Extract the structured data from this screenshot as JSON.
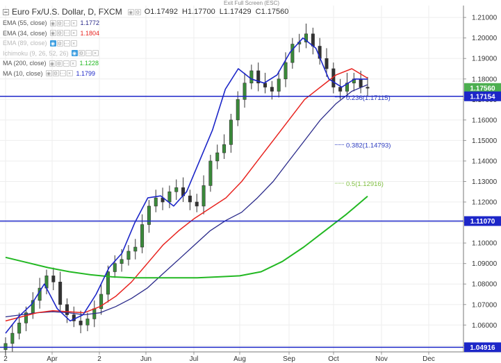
{
  "header": {
    "title": "Euro Fx/U.S. Dollar, D, FXCM",
    "exit_label": "Exit Full Screen (ESC)",
    "ohlc": {
      "open": "O1.17492",
      "high": "H1.17700",
      "low": "L1.17429",
      "close": "C1.17560"
    }
  },
  "indicators": [
    {
      "name": "EMA (55, close)",
      "value": "1.1772",
      "color": "#2a2a8a",
      "faded": false
    },
    {
      "name": "EMA (34, close)",
      "value": "1.1804",
      "color": "#e8231f",
      "faded": false
    },
    {
      "name": "EMA (89, close)",
      "value": "",
      "color": "#bbbbbb",
      "faded": true
    },
    {
      "name": "Ichimoku (9, 26, 52, 26)",
      "value": "",
      "color": "#bbbbbb",
      "faded": true
    },
    {
      "name": "MA (200, close)",
      "value": "1.1228",
      "color": "#22b822",
      "faded": false
    },
    {
      "name": "MA (10, close)",
      "value": "1.1799",
      "color": "#1c26c8",
      "faded": false
    }
  ],
  "chart_data": {
    "type": "line",
    "title": "Euro Fx/U.S. Dollar, D, FXCM",
    "ylim": [
      1.0469,
      1.2158
    ],
    "y_ticks": [
      "1.21000",
      "1.20000",
      "1.19000",
      "1.18000",
      "1.17000",
      "1.16000",
      "1.15000",
      "1.14000",
      "1.13000",
      "1.12000",
      "1.11000",
      "1.10000",
      "1.09000",
      "1.08000",
      "1.07000",
      "1.06000",
      "1.05000"
    ],
    "x_ticks": [
      "2",
      "Apr",
      "2",
      "Jun",
      "Jul",
      "Aug",
      "Sep",
      "Oct",
      "Nov",
      "Dec"
    ],
    "grid": true,
    "price_badges": [
      {
        "label": "1.17560",
        "value": 1.1756,
        "color": "#4caf50"
      },
      {
        "label": "1.17154",
        "value": 1.17154,
        "color": "#1c26c8"
      },
      {
        "label": "1.11070",
        "value": 1.1107,
        "color": "#1c26c8"
      },
      {
        "label": "1.04916",
        "value": 1.04916,
        "color": "#1c26c8"
      }
    ],
    "horizontal_lines": [
      1.17154,
      1.1107,
      1.04916
    ],
    "fibonacci": [
      {
        "label": "0.236(1.17115)",
        "value": 1.17115,
        "color": "#2a3abf"
      },
      {
        "label": "0.382(1.14793)",
        "value": 1.14793,
        "color": "#2a3abf"
      },
      {
        "label": "0.5(1.12916)",
        "value": 1.12916,
        "color": "#7fbf3f"
      }
    ],
    "series": [
      {
        "name": "Euro Fx/U.S. Dollar",
        "close": [
          1.051,
          1.056,
          1.061,
          1.066,
          1.072,
          1.078,
          1.084,
          1.081,
          1.07,
          1.065,
          1.062,
          1.06,
          1.063,
          1.068,
          1.075,
          1.086,
          1.09,
          1.092,
          1.096,
          1.098,
          1.109,
          1.118,
          1.122,
          1.12,
          1.125,
          1.127,
          1.123,
          1.12,
          1.118,
          1.128,
          1.14,
          1.144,
          1.148,
          1.16,
          1.17,
          1.178,
          1.184,
          1.178,
          1.176,
          1.174,
          1.18,
          1.188,
          1.197,
          1.198,
          1.202,
          1.196,
          1.19,
          1.185,
          1.176,
          1.174,
          1.178,
          1.18,
          1.176,
          1.1756
        ]
      },
      {
        "name": "EMA (55, close)",
        "values": [
          1.064,
          1.065,
          1.066,
          1.0665,
          1.066,
          1.065,
          1.066,
          1.069,
          1.073,
          1.078,
          1.085,
          1.092,
          1.099,
          1.106,
          1.111,
          1.115,
          1.122,
          1.13,
          1.14,
          1.15,
          1.16,
          1.168,
          1.174,
          1.1772
        ]
      },
      {
        "name": "EMA (34, close)",
        "values": [
          1.062,
          1.064,
          1.066,
          1.067,
          1.0665,
          1.066,
          1.069,
          1.074,
          1.081,
          1.09,
          1.099,
          1.106,
          1.112,
          1.117,
          1.122,
          1.13,
          1.14,
          1.15,
          1.16,
          1.17,
          1.176,
          1.182,
          1.185,
          1.1804
        ]
      },
      {
        "name": "MA (200, close)",
        "values": [
          1.093,
          1.0905,
          1.088,
          1.086,
          1.0845,
          1.0835,
          1.083,
          1.083,
          1.083,
          1.083,
          1.0835,
          1.084,
          1.086,
          1.091,
          1.098,
          1.106,
          1.114,
          1.1228
        ]
      },
      {
        "name": "MA (10, close)",
        "values": [
          1.056,
          1.064,
          1.07,
          1.08,
          1.068,
          1.062,
          1.065,
          1.075,
          1.088,
          1.095,
          1.11,
          1.122,
          1.123,
          1.118,
          1.125,
          1.14,
          1.155,
          1.175,
          1.185,
          1.18,
          1.178,
          1.182,
          1.193,
          1.2,
          1.195,
          1.18,
          1.176,
          1.18,
          1.1799
        ]
      }
    ]
  }
}
